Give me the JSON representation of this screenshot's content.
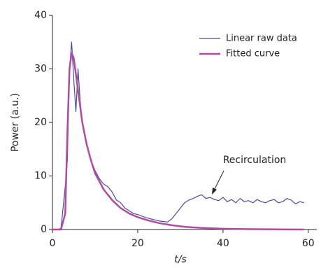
{
  "chart_data": {
    "type": "line",
    "ylabel": "Power (a.u.)",
    "xlabel": "t/s",
    "annotation": "Recirculation",
    "xlim": [
      0,
      62
    ],
    "xticks": [
      0,
      20,
      40,
      60
    ],
    "ylim": [
      0,
      40
    ],
    "yticks": [
      0,
      10,
      20,
      30,
      40
    ],
    "grid": false,
    "legend": "upper right",
    "series": [
      {
        "name": "Linear raw data",
        "color": "#4b4b9c",
        "width": 1.2,
        "x": [
          0,
          1,
          2,
          3,
          3.5,
          4,
          4.5,
          5,
          5.5,
          6,
          6.5,
          7,
          8,
          9,
          10,
          11,
          12,
          13,
          14,
          15,
          16,
          17,
          18,
          19,
          20,
          21,
          22,
          23,
          24,
          25,
          26,
          27,
          28,
          29,
          30,
          31,
          32,
          33,
          34,
          35,
          36,
          37,
          38,
          39,
          40,
          41,
          42,
          43,
          44,
          45,
          46,
          47,
          48,
          49,
          50,
          51,
          52,
          53,
          54,
          55,
          56,
          57,
          58,
          59
        ],
        "values": [
          0,
          0,
          0.2,
          8,
          13,
          30,
          35,
          28,
          22,
          30,
          24,
          20,
          16,
          13,
          11,
          9.5,
          8.5,
          8,
          7,
          5.5,
          5,
          4,
          3.5,
          3,
          2.8,
          2.5,
          2.2,
          2,
          1.8,
          1.6,
          1.5,
          1.4,
          2,
          3,
          4,
          5,
          5.5,
          5.8,
          6.2,
          6.5,
          5.8,
          6,
          5.6,
          5.4,
          6,
          5.2,
          5.6,
          5,
          5.8,
          5.2,
          5.4,
          5,
          5.6,
          5.2,
          5,
          5.4,
          5.6,
          5,
          5.2,
          5.8,
          5.5,
          4.8,
          5.2,
          5
        ]
      },
      {
        "name": "Fitted curve",
        "color": "#b04aa3",
        "width": 2.5,
        "x": [
          0,
          2,
          3,
          3.5,
          4,
          4.5,
          5,
          6,
          7,
          8,
          9,
          10,
          12,
          14,
          16,
          18,
          20,
          22,
          25,
          28,
          31,
          35,
          40,
          45,
          50,
          55,
          59
        ],
        "values": [
          0,
          0,
          3,
          18,
          30,
          33,
          32,
          26,
          20,
          16,
          13,
          10.5,
          7.5,
          5.5,
          4,
          3,
          2.3,
          1.8,
          1.2,
          0.8,
          0.5,
          0.3,
          0.15,
          0.08,
          0.05,
          0.02,
          0
        ]
      }
    ]
  }
}
